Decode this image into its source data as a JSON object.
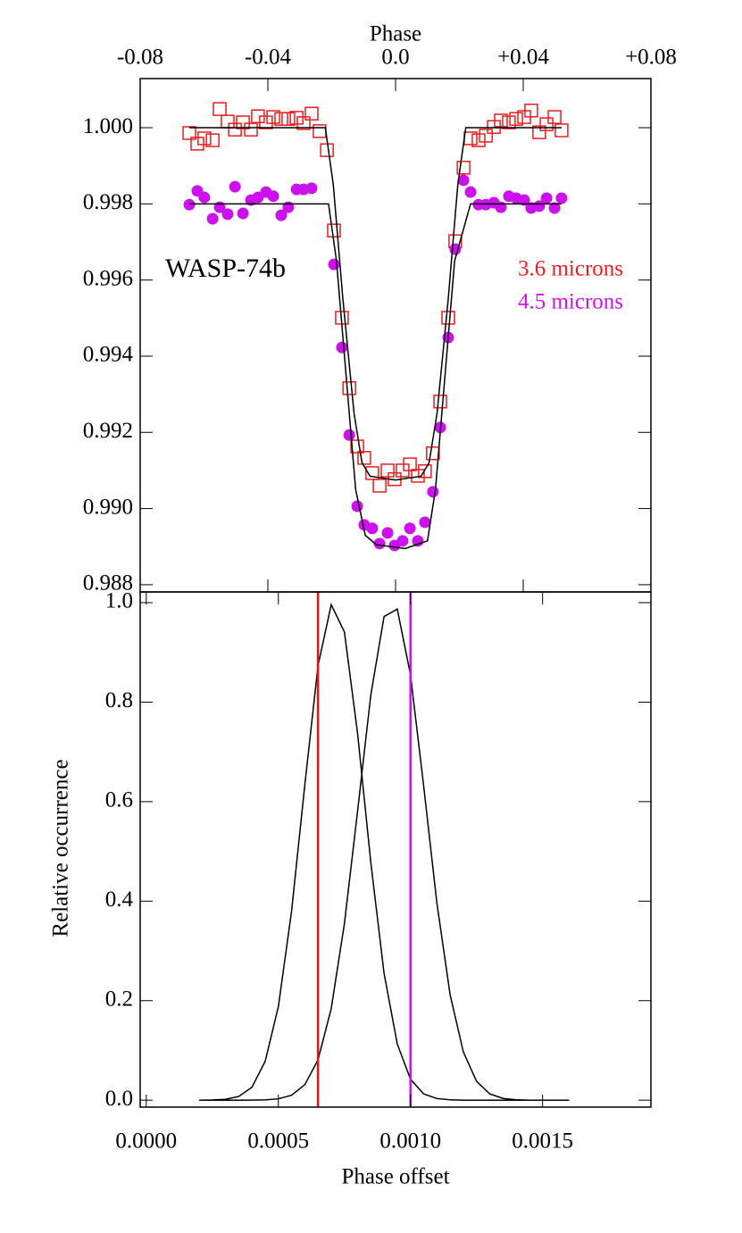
{
  "chart_data": [
    {
      "type": "scatter",
      "title": "Phase",
      "annotation": "WASP-74b",
      "x_axis_side": "top",
      "xlim": [
        -0.08,
        0.08
      ],
      "xticks": [
        -0.08,
        -0.04,
        {
          "value": 0,
          "label": "0.0"
        },
        {
          "value": 0.04,
          "label": "+0.04"
        },
        {
          "value": 0.08,
          "label": "+0.08"
        }
      ],
      "ylim": [
        0.98781,
        1.00129
      ],
      "yticks": [
        0.988,
        {
          "value": 0.99,
          "label": "0.990"
        },
        0.992,
        0.994,
        0.996,
        0.998,
        {
          "value": 1,
          "label": "1.000"
        }
      ],
      "series": [
        {
          "name": "3.6 microns",
          "color": "#ee1c1c",
          "mode": "markers",
          "marker": "square",
          "x": [
            -0.0646,
            -0.0621,
            -0.0599,
            -0.0573,
            -0.0551,
            -0.0526,
            -0.0503,
            -0.0478,
            -0.0453,
            -0.0431,
            -0.0406,
            -0.0383,
            -0.0358,
            -0.0336,
            -0.031,
            -0.0288,
            -0.0263,
            -0.0238,
            -0.0215,
            -0.0193,
            -0.0168,
            -0.0145,
            -0.012,
            -0.0098,
            -0.0073,
            -0.005,
            -0.0025,
            -0.0003,
            0.0022,
            0.0045,
            0.007,
            0.0092,
            0.0117,
            0.014,
            0.0165,
            0.0187,
            0.0213,
            0.0235,
            0.026,
            0.0283,
            0.0308,
            0.033,
            0.0355,
            0.0378,
            0.0403,
            0.0425,
            0.045,
            0.0473,
            0.0498,
            0.052
          ],
          "values": [
            0.99986,
            0.99958,
            0.99972,
            0.99967,
            1.00049,
            1.00016,
            0.99995,
            1.00014,
            0.99995,
            1.0003,
            1.00014,
            1.00028,
            1.00023,
            1.00023,
            1.00026,
            1.00012,
            1.00037,
            0.99991,
            0.99941,
            0.9973,
            0.99501,
            0.99316,
            0.99163,
            0.99133,
            0.99093,
            0.9906,
            0.991,
            0.99077,
            0.991,
            0.99116,
            0.99086,
            0.99098,
            0.99145,
            0.99281,
            0.99501,
            0.99702,
            0.99895,
            0.99972,
            0.99967,
            0.99979,
            1.00002,
            1.00019,
            1.00014,
            1.00023,
            1.00028,
            1.00045,
            0.99988,
            1.00009,
            1.00028,
            0.99993
          ]
        },
        {
          "name": "4.5 microns",
          "color": "#cc11ee",
          "mode": "markers",
          "marker": "circle",
          "x": [
            -0.0646,
            -0.0621,
            -0.0599,
            -0.0573,
            -0.0551,
            -0.0526,
            -0.0503,
            -0.0478,
            -0.0453,
            -0.0431,
            -0.0406,
            -0.0383,
            -0.0358,
            -0.0336,
            -0.031,
            -0.0288,
            -0.0263,
            -0.0193,
            -0.0168,
            -0.0145,
            -0.012,
            -0.0098,
            -0.0073,
            -0.005,
            -0.0025,
            -0.0003,
            0.0022,
            0.0045,
            0.007,
            0.0092,
            0.0117,
            0.014,
            0.0165,
            0.0187,
            0.0213,
            0.0235,
            0.026,
            0.0283,
            0.0308,
            0.033,
            0.0355,
            0.0378,
            0.0403,
            0.0425,
            0.045,
            0.0473,
            0.0498,
            0.052
          ],
          "values": [
            0.99798,
            0.99834,
            0.99817,
            0.99761,
            0.99791,
            0.99773,
            0.99845,
            0.99775,
            0.9981,
            0.99817,
            0.99831,
            0.9982,
            0.9977,
            0.99791,
            0.99838,
            0.99838,
            0.99841,
            0.99641,
            0.99423,
            0.99193,
            0.99006,
            0.98957,
            0.98948,
            0.98908,
            0.98936,
            0.98903,
            0.98915,
            0.98948,
            0.98915,
            0.98964,
            0.99044,
            0.99213,
            0.99449,
            0.99681,
            0.99862,
            0.99831,
            0.99798,
            0.99798,
            0.99803,
            0.99791,
            0.9982,
            0.99815,
            0.9981,
            0.99789,
            0.99794,
            0.99815,
            0.99789,
            0.99815
          ]
        },
        {
          "color": "#000000",
          "mode": "line",
          "x": [
            -0.0646,
            -0.022,
            -0.0195,
            -0.0165,
            -0.013,
            -0.0105,
            -0.008,
            0,
            0.008,
            0.0105,
            0.013,
            0.0165,
            0.0195,
            0.022,
            0.052
          ],
          "values": [
            1,
            1,
            0.9985,
            0.9955,
            0.9925,
            0.9912,
            0.99085,
            0.99075,
            0.99085,
            0.9912,
            0.9925,
            0.9955,
            0.9985,
            1,
            1
          ]
        },
        {
          "color": "#000000",
          "mode": "line",
          "x": [
            -0.0646,
            -0.021,
            -0.0185,
            -0.0155,
            -0.0125,
            -0.0095,
            -0.006,
            0.003,
            0.01,
            0.0125,
            0.0155,
            0.0185,
            0.0235,
            0.052
          ],
          "values": [
            0.998,
            0.998,
            0.9965,
            0.9935,
            0.9905,
            0.9893,
            0.98905,
            0.98895,
            0.98915,
            0.9905,
            0.9935,
            0.9965,
            0.998,
            0.998
          ]
        }
      ]
    },
    {
      "type": "line",
      "x_axis_side": "bottom",
      "x_label": "Phase offset",
      "y_label": "Relative occurrence",
      "xlim": [
        -2.3e-05,
        0.00191
      ],
      "xticks": [
        {
          "value": 0,
          "label": "0.0000"
        },
        0.0005,
        {
          "value": 0.001,
          "label": "0.0010"
        },
        0.0015
      ],
      "ylim": [
        -0.014,
        1.0215
      ],
      "yticks": [
        {
          "value": 0,
          "label": "0.0"
        },
        0.2,
        0.4,
        0.6,
        0.8,
        {
          "value": 1,
          "label": "1.0"
        }
      ],
      "x": [
        0.0002,
        0.00025,
        0.0003,
        0.00035,
        0.0004,
        0.00045,
        0.0005,
        0.00055,
        0.0006,
        0.00065,
        0.0007,
        0.00075,
        0.0008,
        0.00085,
        0.0009,
        0.00095,
        0.001,
        0.00105,
        0.0011,
        0.00115,
        0.0012,
        0.00125,
        0.0013,
        0.00135,
        0.0014,
        0.00145,
        0.0015,
        0.00155,
        0.0016
      ],
      "series": [
        {
          "color": "#000000",
          "values": [
            0,
            0.0003,
            0.0017,
            0.0074,
            0.026,
            0.078,
            0.188,
            0.38,
            0.633,
            0.873,
            0.996,
            0.941,
            0.736,
            0.477,
            0.255,
            0.113,
            0.042,
            0.0125,
            0.0032,
            0.0007,
            0,
            0,
            0,
            0,
            0,
            0,
            0,
            0,
            0
          ]
        },
        {
          "color": "#000000",
          "values": [
            0,
            0,
            0,
            0,
            0.0001,
            0.0006,
            0.0027,
            0.0099,
            0.031,
            0.081,
            0.184,
            0.355,
            0.582,
            0.815,
            0.972,
            0.987,
            0.855,
            0.631,
            0.396,
            0.212,
            0.097,
            0.038,
            0.0125,
            0.0035,
            0.0009,
            0,
            0,
            0,
            0
          ]
        }
      ],
      "vlines": [
        {
          "value": 0.00065,
          "color": "#ee1111"
        },
        {
          "value": 0.001,
          "color": "#cc11ee"
        }
      ]
    }
  ]
}
